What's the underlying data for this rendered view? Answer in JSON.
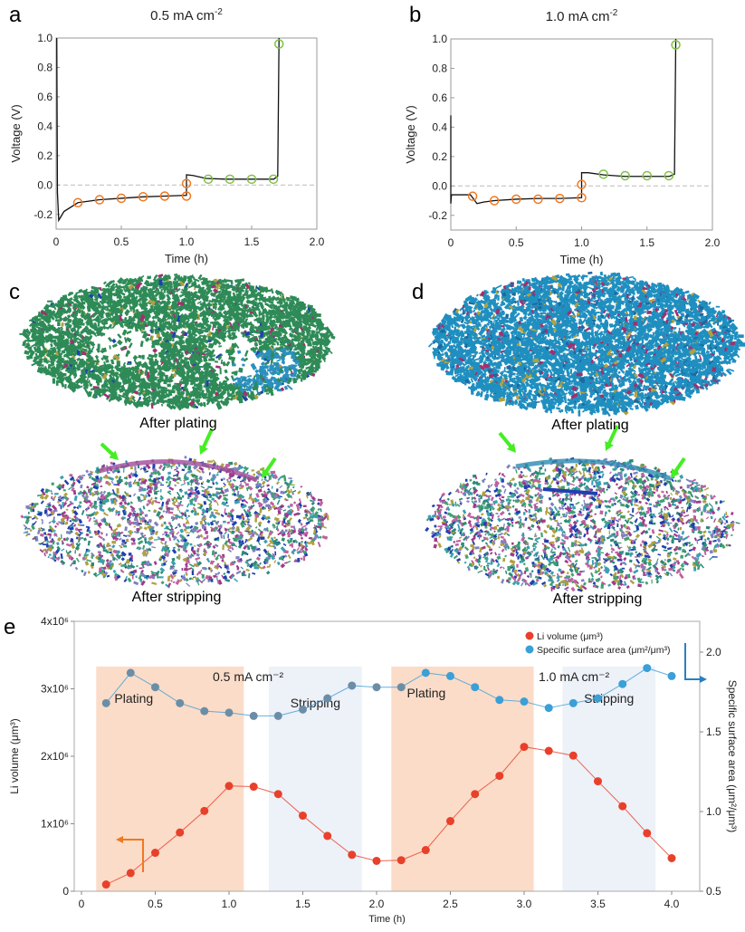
{
  "panels": {
    "a": "a",
    "b": "b",
    "c": "c",
    "d": "d",
    "e": "e"
  },
  "renders": {
    "c_top_label": "After plating",
    "c_bottom_label": "After stripping",
    "d_top_label": "After plating",
    "d_bottom_label": "After stripping",
    "c_top_main_color": "#2e8b57",
    "d_top_main_color": "#1f8fc0",
    "arrow_color": "#44ee22"
  },
  "chart_data": [
    {
      "id": "a",
      "type": "line",
      "title": "0.5 mA cm",
      "title_sup": "-2",
      "xlabel": "Time (h)",
      "ylabel": "Voltage (V)",
      "xlim": [
        0,
        2.0
      ],
      "ylim": [
        -0.3,
        1.0
      ],
      "xticks": [
        "0",
        "0.5",
        "1.0",
        "1.5",
        "2.0"
      ],
      "yticks": [
        "-0.2",
        "0.0",
        "0.2",
        "0.4",
        "0.6",
        "0.8",
        "1.0"
      ],
      "reference_line": 0.0,
      "line": [
        [
          0.005,
          1.0
        ],
        [
          0.01,
          -0.05
        ],
        [
          0.02,
          -0.24
        ],
        [
          0.06,
          -0.18
        ],
        [
          0.167,
          -0.12
        ],
        [
          0.333,
          -0.1
        ],
        [
          0.5,
          -0.09
        ],
        [
          0.667,
          -0.08
        ],
        [
          0.833,
          -0.075
        ],
        [
          1.0,
          -0.07
        ],
        [
          1.0,
          0.07
        ],
        [
          1.05,
          0.065
        ],
        [
          1.15,
          0.045
        ],
        [
          1.3,
          0.04
        ],
        [
          1.67,
          0.04
        ],
        [
          1.7,
          0.06
        ],
        [
          1.71,
          1.0
        ]
      ],
      "markers_plating": [
        [
          0.167,
          -0.12
        ],
        [
          0.333,
          -0.1
        ],
        [
          0.5,
          -0.09
        ],
        [
          0.667,
          -0.08
        ],
        [
          0.833,
          -0.075
        ],
        [
          1.0,
          -0.075
        ],
        [
          1.0,
          0.01
        ]
      ],
      "markers_stripping": [
        [
          1.167,
          0.04
        ],
        [
          1.333,
          0.04
        ],
        [
          1.5,
          0.04
        ],
        [
          1.667,
          0.04
        ],
        [
          1.71,
          0.96
        ]
      ],
      "colors": {
        "line": "#111111",
        "plating": "#f07820",
        "stripping": "#7dc242"
      }
    },
    {
      "id": "b",
      "type": "line",
      "title": "1.0 mA cm",
      "title_sup": "-2",
      "xlabel": "Time (h)",
      "ylabel": "Voltage (V)",
      "xlim": [
        0,
        2.0
      ],
      "ylim": [
        -0.3,
        1.0
      ],
      "xticks": [
        "0",
        "0.5",
        "1.0",
        "1.5",
        "2.0"
      ],
      "yticks": [
        "-0.2",
        "0.0",
        "0.2",
        "0.4",
        "0.6",
        "0.8",
        "1.0"
      ],
      "reference_line": 0.0,
      "line": [
        [
          0.0,
          0.48
        ],
        [
          0.0,
          -0.12
        ],
        [
          0.005,
          -0.06
        ],
        [
          0.15,
          -0.06
        ],
        [
          0.2,
          -0.12
        ],
        [
          0.25,
          -0.11
        ],
        [
          0.333,
          -0.1
        ],
        [
          0.5,
          -0.09
        ],
        [
          0.667,
          -0.085
        ],
        [
          0.833,
          -0.085
        ],
        [
          1.0,
          -0.08
        ],
        [
          1.0,
          0.09
        ],
        [
          1.05,
          0.09
        ],
        [
          1.17,
          0.075
        ],
        [
          1.33,
          0.065
        ],
        [
          1.67,
          0.065
        ],
        [
          1.71,
          0.08
        ],
        [
          1.72,
          1.0
        ]
      ],
      "markers_plating": [
        [
          0.167,
          -0.07
        ],
        [
          0.333,
          -0.1
        ],
        [
          0.5,
          -0.09
        ],
        [
          0.667,
          -0.09
        ],
        [
          0.833,
          -0.085
        ],
        [
          1.0,
          -0.08
        ],
        [
          1.0,
          0.01
        ]
      ],
      "markers_stripping": [
        [
          1.167,
          0.08
        ],
        [
          1.333,
          0.07
        ],
        [
          1.5,
          0.07
        ],
        [
          1.667,
          0.07
        ],
        [
          1.72,
          0.96
        ]
      ],
      "colors": {
        "line": "#111111",
        "plating": "#f07820",
        "stripping": "#7dc242"
      }
    },
    {
      "id": "e",
      "type": "line",
      "xlabel": "Time (h)",
      "ylabel_left": "Li volume (μm³)",
      "ylabel_right": "Specific surface area (μm²/μm³)",
      "xlim": [
        0,
        4.2
      ],
      "ylim_left": [
        0,
        4000000
      ],
      "ylim_right": [
        0.5,
        2.2
      ],
      "xticks": [
        "0",
        "0.5",
        "1.0",
        "1.5",
        "2.0",
        "2.5",
        "3.0",
        "3.5",
        "4.0"
      ],
      "yticks_left": [
        "0",
        "1x10⁶",
        "2x10⁶",
        "3x10⁶",
        "4x10⁶"
      ],
      "yticks_right": [
        "0.5",
        "1.0",
        "1.5",
        "2.0"
      ],
      "regions": [
        {
          "from": 0.1,
          "to": 1.1,
          "type": "plating",
          "label": "Plating"
        },
        {
          "from": 1.27,
          "to": 1.9,
          "type": "stripping",
          "label": "Stripping"
        },
        {
          "from": 2.1,
          "to": 3.065,
          "type": "plating",
          "label": "Plating"
        },
        {
          "from": 3.26,
          "to": 3.89,
          "type": "stripping",
          "label": "Stripping"
        }
      ],
      "region_top": 3330000,
      "annotations": [
        "0.5 mA cm⁻²",
        "1.0 mA cm⁻²"
      ],
      "x": [
        0.167,
        0.333,
        0.5,
        0.667,
        0.833,
        1.0,
        1.167,
        1.333,
        1.5,
        1.667,
        1.833,
        2.0,
        2.167,
        2.333,
        2.5,
        2.667,
        2.833,
        3.0,
        3.167,
        3.333,
        3.5,
        3.667,
        3.833,
        4.0
      ],
      "series": [
        {
          "name": "Li volume (μm³)",
          "axis": "left",
          "color": "#e8402a",
          "values": [
            100000,
            270000,
            570000,
            870000,
            1190000,
            1560000,
            1550000,
            1440000,
            1120000,
            820000,
            540000,
            450000,
            460000,
            610000,
            1040000,
            1440000,
            1710000,
            2140000,
            2080000,
            2010000,
            1630000,
            1260000,
            860000,
            490000
          ]
        },
        {
          "name": "Specific surface area (μm²/μm³)",
          "axis": "right",
          "color": "#3b9fd8",
          "values": [
            1.68,
            1.87,
            1.78,
            1.68,
            1.63,
            1.62,
            1.6,
            1.6,
            1.64,
            1.71,
            1.79,
            1.78,
            1.78,
            1.87,
            1.85,
            1.78,
            1.7,
            1.69,
            1.65,
            1.68,
            1.71,
            1.8,
            1.9,
            1.85
          ]
        }
      ],
      "colors": {
        "plating_region": "#fbdcc8",
        "stripping_region": "#edf1f8",
        "left_arrow": "#f07820",
        "right_arrow": "#2a7fc1"
      },
      "legend": "top-right"
    }
  ]
}
